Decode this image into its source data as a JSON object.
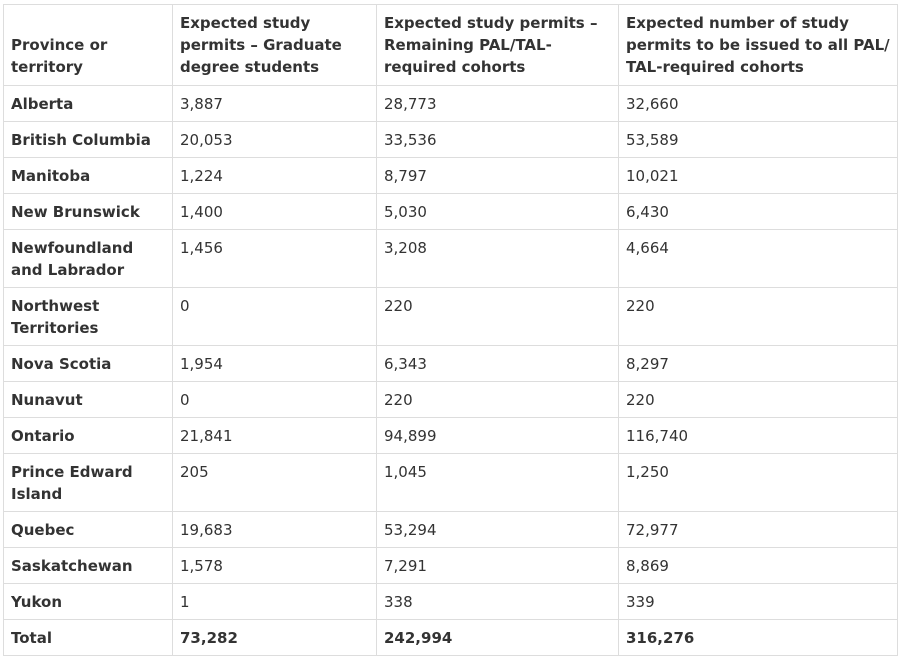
{
  "table": {
    "headers": [
      "Province or territory",
      "Expected study permits – Graduate degree students",
      "Expected study permits – Remaining PAL/TAL-required cohorts",
      "Expected number of study permits to be issued to all PAL/ TAL-required cohorts"
    ],
    "rows": [
      [
        "Alberta",
        "3,887",
        "28,773",
        "32,660"
      ],
      [
        "British Columbia",
        "20,053",
        "33,536",
        "53,589"
      ],
      [
        "Manitoba",
        "1,224",
        "8,797",
        "10,021"
      ],
      [
        "New Brunswick",
        "1,400",
        "5,030",
        "6,430"
      ],
      [
        "Newfoundland and Labrador",
        "1,456",
        "3,208",
        "4,664"
      ],
      [
        "Northwest Territories",
        "0",
        "220",
        "220"
      ],
      [
        "Nova Scotia",
        "1,954",
        "6,343",
        "8,297"
      ],
      [
        "Nunavut",
        "0",
        "220",
        "220"
      ],
      [
        "Ontario",
        "21,841",
        "94,899",
        "116,740"
      ],
      [
        "Prince Edward Island",
        "205",
        "1,045",
        "1,250"
      ],
      [
        "Quebec",
        "19,683",
        "53,294",
        "72,977"
      ],
      [
        "Saskatchewan",
        "1,578",
        "7,291",
        "8,869"
      ],
      [
        "Yukon",
        "1",
        "338",
        "339"
      ]
    ],
    "total": [
      "Total",
      "73,282",
      "242,994",
      "316,276"
    ]
  }
}
